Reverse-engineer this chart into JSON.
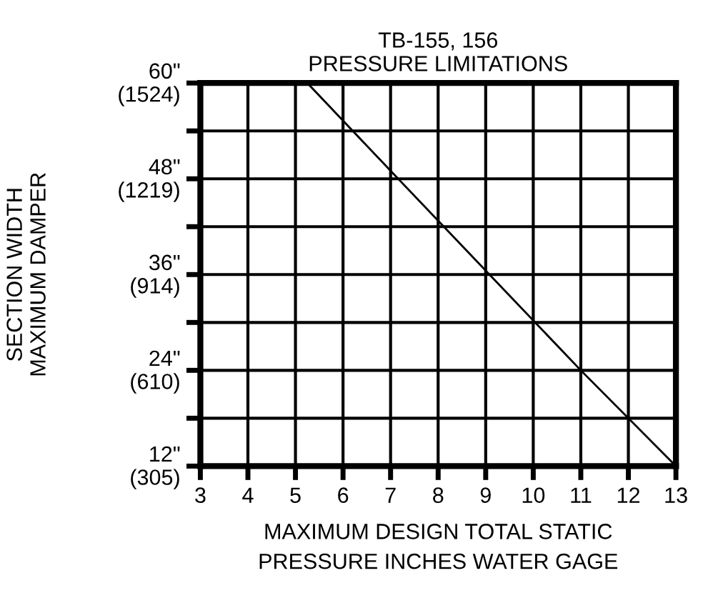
{
  "chart_data": {
    "type": "line",
    "title": "TB-155, 156\nPRESSURE LIMITATIONS",
    "xlabel": "MAXIMUM DESIGN TOTAL STATIC\nPRESSURE INCHES WATER GAGE",
    "y2label": "SECTION WIDTH\nMAXIMUM DAMPER",
    "series": [
      {
        "color": "#000000",
        "x": [
          5.25,
          7,
          9,
          11,
          13
        ],
        "values": [
          60,
          49,
          36.5,
          24,
          12
        ]
      }
    ],
    "xlim": [
      3,
      13
    ],
    "xticks": [
      3,
      4,
      5,
      6,
      7,
      8,
      9,
      10,
      11,
      12,
      13
    ],
    "ylim": [
      12,
      60
    ],
    "yticks": [
      {
        "value": 12,
        "label": "12\""
      },
      {
        "value": 18,
        "label": null
      },
      {
        "value": 24,
        "label": "24\""
      },
      {
        "value": 30,
        "label": null
      },
      {
        "value": 36,
        "label": "36\""
      },
      {
        "value": 42,
        "label": null
      },
      {
        "value": 48,
        "label": "48\""
      },
      {
        "value": 54,
        "label": null
      },
      {
        "value": 60,
        "label": "60\""
      }
    ],
    "y2lim": [
      304.8,
      1524
    ],
    "y2ticks": [
      {
        "value": 304.8,
        "label": "(305)"
      },
      {
        "value": 609.6,
        "label": "(610)"
      },
      {
        "value": 914.4,
        "label": "(914)"
      },
      {
        "value": 1219.2,
        "label": "(1219)"
      },
      {
        "value": 1524,
        "label": "(1524)"
      }
    ],
    "grid": true,
    "marker": "none",
    "line_style": "solid"
  }
}
